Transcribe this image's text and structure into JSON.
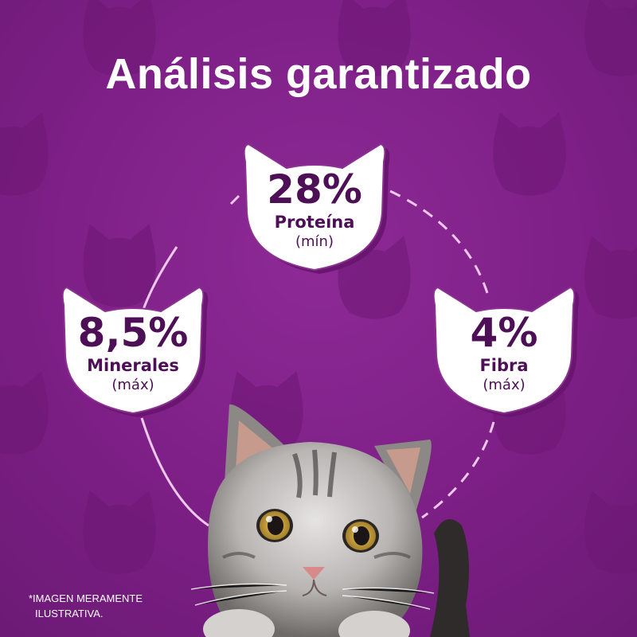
{
  "title": "Análisis garantizado",
  "badges": {
    "protein": {
      "value": "28%",
      "label": "Proteína",
      "qualifier": "(mín)"
    },
    "minerals": {
      "value": "8,5%",
      "label": "Minerales",
      "qualifier": "(máx)"
    },
    "fiber": {
      "value": "4%",
      "label": "Fibra",
      "qualifier": "(máx)"
    }
  },
  "disclaimer": {
    "line1": "*IMAGEN MERAMENTE",
    "line2": "ILUSTRATIVA."
  },
  "icons": [
    "cat-head-pattern",
    "cat-head-badge",
    "cat-photo"
  ],
  "colors": {
    "background": "#7d1f86",
    "badge_fill": "#ffffff",
    "badge_text": "#4d0f55"
  }
}
